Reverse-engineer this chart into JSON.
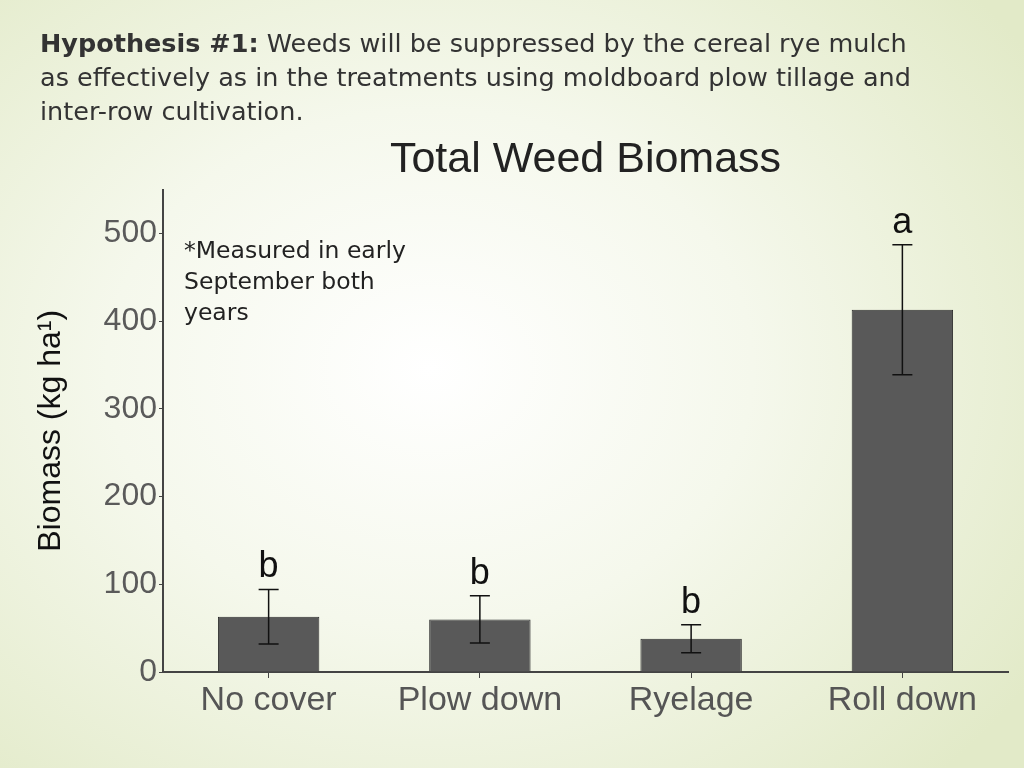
{
  "chart_data": {
    "type": "bar",
    "title": "Total Weed Biomass",
    "ylabel": "Biomass (kg ha¹)",
    "categories": [
      "No cover",
      "Plow down",
      "Ryelage",
      "Roll down"
    ],
    "values": [
      63,
      60,
      38,
      413
    ],
    "errors": [
      31,
      27,
      16,
      74
    ],
    "color": "#595959",
    "ylim": [
      0,
      550
    ],
    "yticks": [
      0,
      100,
      200,
      300,
      400,
      500
    ],
    "annotations": [
      "Hypothesis #1: Weeds will be suppressed by the cereal rye mulch as effectively as in the treatments using moldboard plow tillage and inter-row cultivation.",
      "*Measured in early September both years",
      {
        "text": "b",
        "x": "No cover",
        "y": 94
      },
      {
        "text": "b",
        "x": "Plow down",
        "y": 87
      },
      {
        "text": "b",
        "x": "Ryelage",
        "y": 54
      },
      {
        "text": "a",
        "x": "Roll down",
        "y": 487
      }
    ]
  }
}
